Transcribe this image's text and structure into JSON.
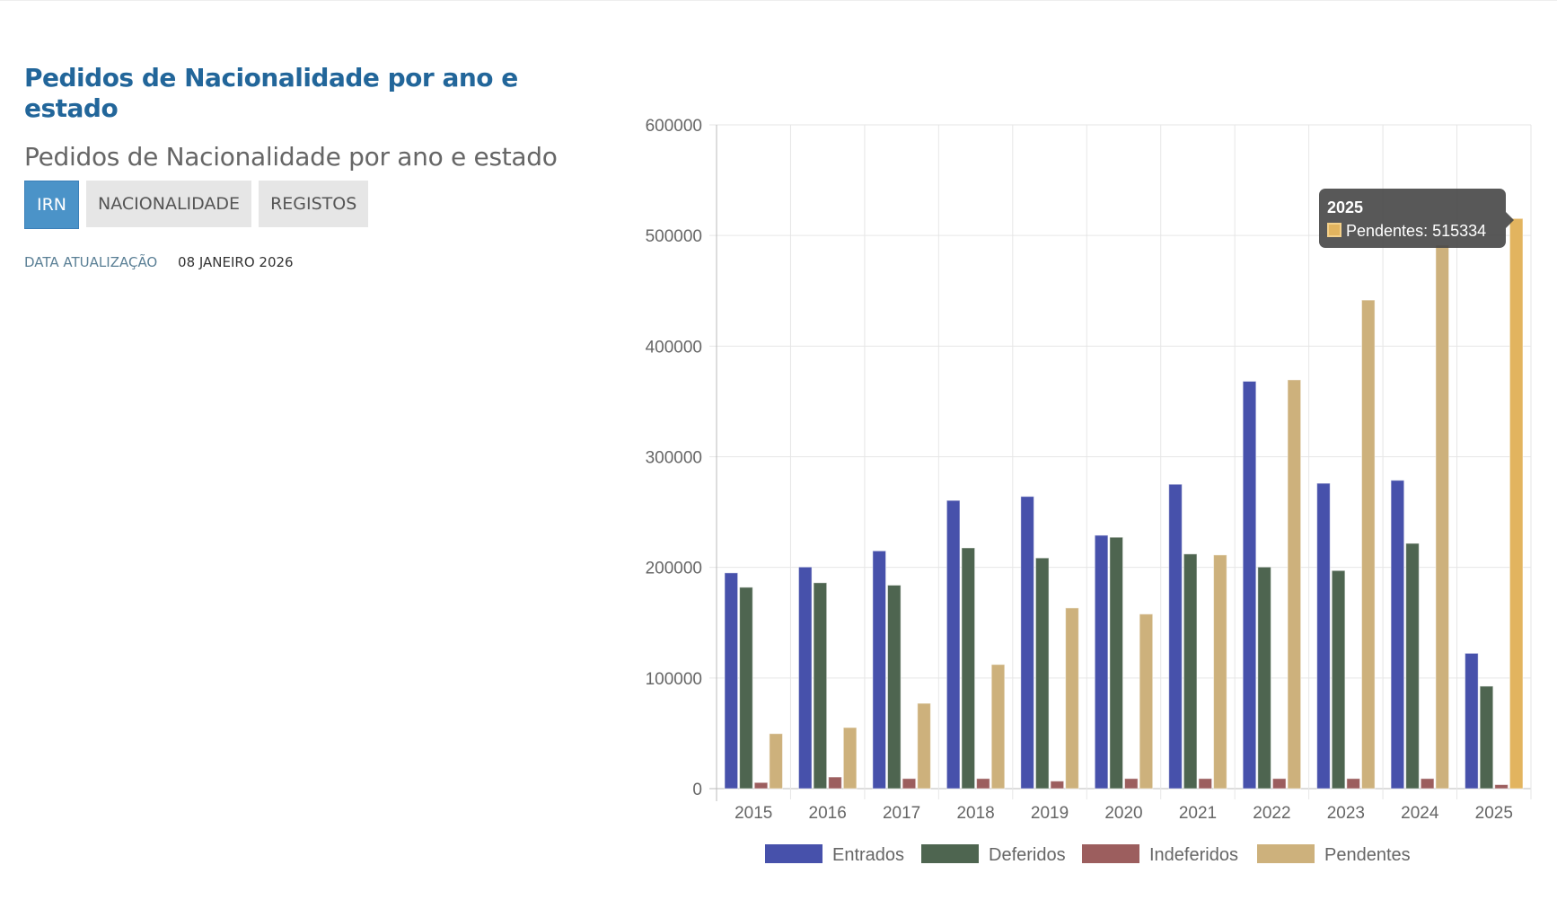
{
  "header": {
    "title": "Pedidos de Nacionalidade por ano e estado",
    "subtitle": "Pedidos de Nacionalidade por ano e estado",
    "tabs": [
      {
        "label": "IRN",
        "active": true
      },
      {
        "label": "NACIONALIDADE",
        "active": false
      },
      {
        "label": "REGISTOS",
        "active": false
      }
    ],
    "update_label": "DATA ATUALIZAÇÃO",
    "update_value": "08 JANEIRO 2026"
  },
  "tooltip": {
    "title": "2025",
    "label": "Pendentes: 515334",
    "color": "#e2b45f"
  },
  "chart_data": {
    "type": "bar",
    "title": "",
    "xlabel": "",
    "ylabel": "",
    "ylim": [
      0,
      600000
    ],
    "yticks": [
      "0",
      "100000",
      "200000",
      "300000",
      "400000",
      "500000",
      "600000"
    ],
    "grid": true,
    "legend_position": "bottom",
    "categories": [
      "2015",
      "2016",
      "2017",
      "2018",
      "2019",
      "2020",
      "2021",
      "2022",
      "2023",
      "2024",
      "2025"
    ],
    "series": [
      {
        "name": "Entrados",
        "color": "#4751ab",
        "values": [
          195000,
          200300,
          214900,
          260500,
          264100,
          229000,
          275100,
          368200,
          276000,
          278700,
          122300
        ]
      },
      {
        "name": "Deferidos",
        "color": "#4e6550",
        "values": [
          182000,
          186100,
          183900,
          217600,
          208500,
          227200,
          212100,
          200300,
          197100,
          221700,
          92600
        ]
      },
      {
        "name": "Indeferidos",
        "color": "#9c5e5e",
        "values": [
          5500,
          10500,
          9100,
          9100,
          6800,
          9100,
          9100,
          9100,
          9100,
          9100,
          3600
        ]
      },
      {
        "name": "Pendentes",
        "color": "#cdb17c",
        "values": [
          49700,
          55200,
          77100,
          112200,
          163300,
          157800,
          211200,
          369500,
          441600,
          491300,
          515334
        ]
      }
    ],
    "highlight": {
      "series": "Pendentes",
      "category": "2025",
      "color": "#e2b45f"
    }
  }
}
